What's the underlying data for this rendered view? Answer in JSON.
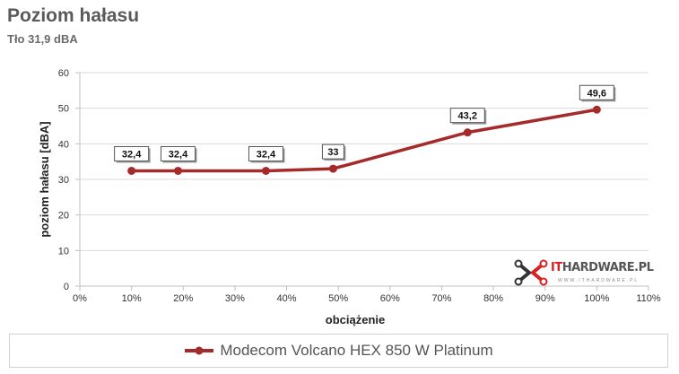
{
  "title": "Poziom hałasu",
  "subtitle": "Tło 31,9 dBA",
  "watermark": {
    "prefix": "IT",
    "brand": "HARDWARE.PL",
    "url": "WWW.ITHARDWARE.PL"
  },
  "colors": {
    "series": "#a52a2a",
    "grid": "#d9d9d9",
    "axis": "#bfbfbf"
  },
  "chart_data": {
    "type": "line",
    "title": "Poziom hałasu",
    "subtitle": "Tło 31,9 dBA",
    "xlabel": "obciążenie",
    "ylabel": "poziom hałasu [dBA]",
    "xlim": [
      0,
      110
    ],
    "ylim": [
      0,
      60
    ],
    "x_ticks": [
      "0%",
      "10%",
      "20%",
      "30%",
      "40%",
      "50%",
      "60%",
      "70%",
      "80%",
      "90%",
      "100%",
      "110%"
    ],
    "y_ticks": [
      "0",
      "10",
      "20",
      "30",
      "40",
      "50",
      "60"
    ],
    "grid": "horizontal",
    "legend_position": "bottom",
    "series": [
      {
        "name": "Modecom Volcano HEX 850 W Platinum",
        "x": [
          10,
          19,
          36,
          49,
          75,
          100
        ],
        "y": [
          32.4,
          32.4,
          32.4,
          33,
          43.2,
          49.6
        ],
        "labels": [
          "32,4",
          "32,4",
          "32,4",
          "33",
          "43,2",
          "49,6"
        ]
      }
    ]
  }
}
